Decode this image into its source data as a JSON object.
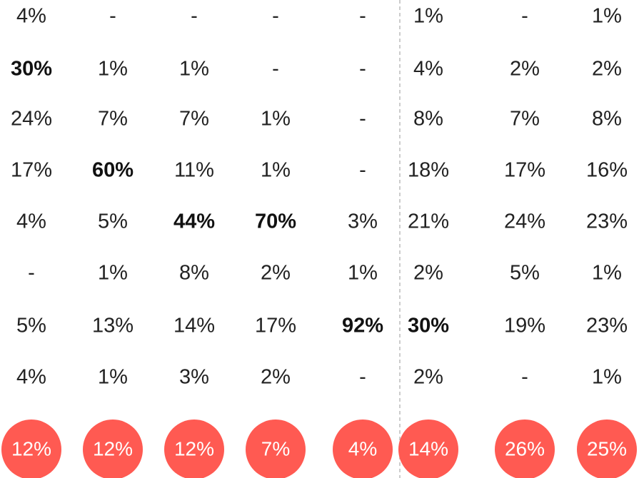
{
  "table": {
    "rows": [
      [
        "4%",
        "-",
        "-",
        "-",
        "-",
        "1%",
        "-",
        "1%"
      ],
      [
        "30%",
        "1%",
        "1%",
        "-",
        "-",
        "4%",
        "2%",
        "2%"
      ],
      [
        "24%",
        "7%",
        "7%",
        "1%",
        "-",
        "8%",
        "7%",
        "8%"
      ],
      [
        "17%",
        "60%",
        "11%",
        "1%",
        "-",
        "18%",
        "17%",
        "16%"
      ],
      [
        "4%",
        "5%",
        "44%",
        "70%",
        "3%",
        "21%",
        "24%",
        "23%"
      ],
      [
        "-",
        "1%",
        "8%",
        "2%",
        "1%",
        "2%",
        "5%",
        "1%"
      ],
      [
        "5%",
        "13%",
        "14%",
        "17%",
        "92%",
        "30%",
        "19%",
        "23%"
      ],
      [
        "4%",
        "1%",
        "3%",
        "2%",
        "-",
        "2%",
        "-",
        "1%"
      ]
    ],
    "bold": [
      [
        1,
        0
      ],
      [
        3,
        1
      ],
      [
        4,
        2
      ],
      [
        4,
        3
      ],
      [
        6,
        4
      ],
      [
        6,
        5
      ]
    ],
    "totals": [
      "12%",
      "12%",
      "12%",
      "7%",
      "4%",
      "14%",
      "26%",
      "25%"
    ],
    "total_color": "#ff5a52"
  }
}
